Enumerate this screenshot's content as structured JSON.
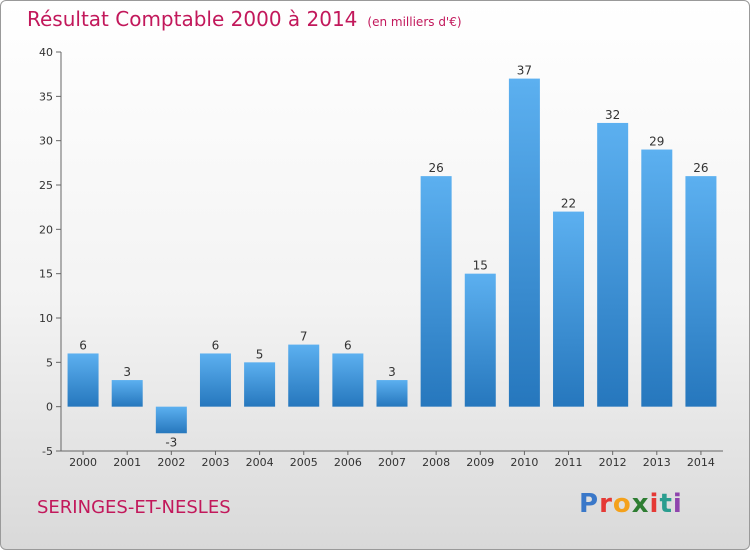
{
  "chart_data": {
    "type": "bar",
    "title": "Résultat Comptable 2000 à 2014",
    "subtitle": "(en milliers d'€)",
    "categories": [
      "2000",
      "2001",
      "2002",
      "2003",
      "2004",
      "2005",
      "2006",
      "2007",
      "2008",
      "2009",
      "2010",
      "2011",
      "2012",
      "2013",
      "2014"
    ],
    "values": [
      6,
      3,
      -3,
      6,
      5,
      7,
      6,
      3,
      26,
      15,
      37,
      22,
      32,
      29,
      26
    ],
    "ylim": [
      -5,
      40
    ],
    "yticks": [
      -5,
      0,
      5,
      10,
      15,
      20,
      25,
      30,
      35,
      40
    ],
    "grid": false,
    "bar_color": "#3a8fd9",
    "title_color": "#c2185b"
  },
  "footer": {
    "commune": "SERINGES-ET-NESLES",
    "logo_letters": [
      "P",
      "r",
      "o",
      "x",
      "i",
      "t",
      "i"
    ],
    "logo_colors": [
      "#3a78c9",
      "#e53935",
      "#f4a11b",
      "#2e7d32",
      "#e53935",
      "#2a9d8f",
      "#8e44ad"
    ]
  }
}
